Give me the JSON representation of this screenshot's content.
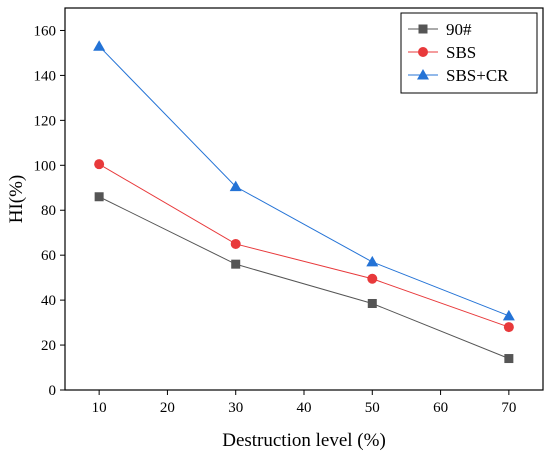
{
  "chart_data": {
    "type": "line",
    "title": "",
    "xlabel": "Destruction level (%)",
    "ylabel": "HI(%)",
    "xlim": [
      5,
      75
    ],
    "ylim": [
      0,
      170
    ],
    "xticks": [
      10,
      20,
      30,
      40,
      50,
      60,
      70
    ],
    "yticks": [
      0,
      20,
      40,
      60,
      80,
      100,
      120,
      140,
      160
    ],
    "grid": false,
    "legend_position": "top-right",
    "x": [
      10,
      30,
      50,
      70
    ],
    "series": [
      {
        "name": "90#",
        "values": [
          86,
          56,
          38.5,
          14
        ],
        "color": "#555555",
        "marker": "square"
      },
      {
        "name": "SBS",
        "values": [
          100.5,
          65,
          49.5,
          28
        ],
        "color": "#e8393b",
        "marker": "circle"
      },
      {
        "name": "SBS+CR",
        "values": [
          153,
          90.5,
          57,
          33
        ],
        "color": "#2473d6",
        "marker": "triangle"
      }
    ]
  }
}
